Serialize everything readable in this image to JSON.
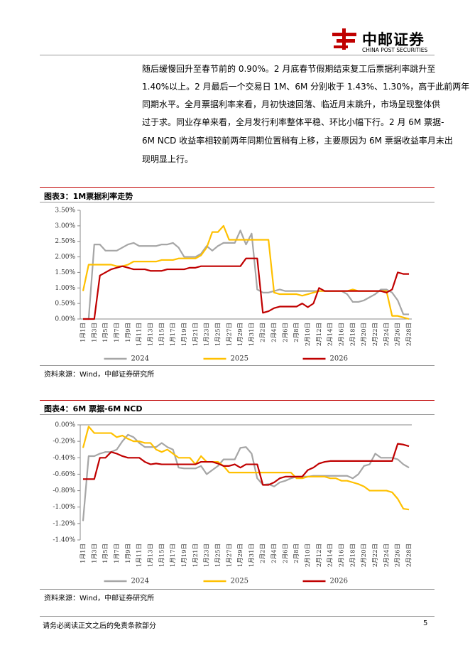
{
  "header": {
    "logo": "中邮证券",
    "logo_en": "CHINA POST SECURITIES"
  },
  "paragraph": [
    "随后缓慢回升至春节前的 0.90%。2 月底春节假期结束复工后票据利率跳升至",
    "1.40%以上。2 月最后一个交易日 1M、6M 分别收于 1.43%、1.30%，高于此前两年",
    "同期水平。全月票据利率来看，月初快速回落、临近月末跳升，市场呈现整体供",
    "过于求。同业存单来看，全月发行利率整体平稳、环比小幅下行。2 月 6M 票据-",
    "6M NCD 收益率相较前两年同期位置稍有上移，主要原因为 6M 票据收益率月末出",
    "现明显上行。"
  ],
  "chart_data": [
    {
      "type": "line",
      "title": "图表3：1M票据利率走势",
      "source": "资料来源：Wind，中邮证券研究所",
      "categories": [
        "1月1日",
        null,
        "1月3日",
        null,
        "1月5日",
        null,
        "1月7日",
        null,
        "1月9日",
        null,
        "1月11日",
        null,
        "1月13日",
        null,
        "1月15日",
        null,
        "1月17日",
        null,
        "1月19日",
        null,
        "1月21日",
        null,
        "1月23日",
        null,
        "1月25日",
        null,
        "1月27日",
        null,
        "1月29日",
        null,
        "1月31日",
        null,
        "2月2日",
        null,
        "2月4日",
        null,
        "2月6日",
        null,
        "2月8日",
        null,
        "2月10日",
        null,
        "2月12日",
        null,
        "2月14日",
        null,
        "2月16日",
        null,
        "2月18日",
        null,
        "2月20日",
        null,
        "2月22日",
        null,
        "2月24日",
        null,
        "2月26日",
        null,
        "2月28日"
      ],
      "ylim": [
        0,
        3.5
      ],
      "yticks": [
        {
          "value": 0,
          "label": "0.00%"
        },
        {
          "value": 0.5,
          "label": "0.50%"
        },
        {
          "value": 1,
          "label": "1.00%"
        },
        {
          "value": 1.5,
          "label": "1.50%"
        },
        {
          "value": 2,
          "label": "2.00%"
        },
        {
          "value": 2.5,
          "label": "2.50%"
        },
        {
          "value": 3,
          "label": "3.00%"
        },
        {
          "value": 3.5,
          "label": "3.50%"
        }
      ],
      "grid": false,
      "legend": "bottom",
      "series": [
        {
          "name": "2024",
          "color": "#a6a6a6",
          "values": [
            0,
            0,
            2.4,
            2.4,
            2.2,
            2.2,
            2.2,
            2.3,
            2.4,
            2.45,
            2.35,
            2.35,
            2.35,
            2.35,
            2.4,
            2.4,
            2.45,
            2.3,
            2.0,
            2.0,
            2.0,
            2.1,
            2.35,
            2.2,
            2.35,
            2.45,
            2.45,
            2.45,
            2.85,
            2.4,
            2.75,
            0.95,
            0.85,
            0.85,
            0.9,
            0.95,
            0.9,
            0.9,
            0.9,
            0.9,
            0.9,
            0.9,
            0.9,
            0.9,
            0.9,
            0.9,
            0.9,
            0.8,
            0.55,
            0.55,
            0.6,
            0.7,
            0.8,
            0.95,
            0.95,
            0.85,
            0.6,
            0.15,
            0.15
          ]
        },
        {
          "name": "2025",
          "color": "#ffc000",
          "values": [
            0.9,
            1.75,
            1.75,
            1.75,
            1.75,
            1.75,
            1.7,
            1.7,
            1.75,
            1.85,
            1.85,
            1.85,
            1.85,
            1.85,
            1.9,
            1.9,
            1.9,
            1.95,
            1.95,
            1.95,
            1.95,
            2.05,
            2.3,
            2.8,
            2.8,
            3.0,
            2.55,
            2.55,
            2.55,
            2.55,
            2.55,
            2.55,
            2.55,
            2.55,
            0.85,
            0.8,
            0.8,
            0.8,
            0.8,
            0.75,
            0.8,
            0.85,
            0.9,
            0.9,
            0.9,
            0.9,
            0.9,
            0.9,
            0.95,
            0.9,
            0.9,
            0.9,
            0.9,
            0.9,
            0.9,
            0.1,
            0.1,
            0.05,
            0.0
          ]
        },
        {
          "name": "2026",
          "color": "#c00000",
          "values": [
            0,
            0,
            0,
            1.4,
            1.5,
            1.6,
            1.65,
            1.7,
            1.65,
            1.6,
            1.6,
            1.6,
            1.55,
            1.55,
            1.55,
            1.6,
            1.6,
            1.6,
            1.6,
            1.65,
            1.65,
            1.7,
            1.7,
            1.7,
            1.7,
            1.7,
            1.7,
            1.7,
            1.7,
            1.95,
            1.95,
            1.95,
            0.2,
            0.25,
            0.35,
            0.4,
            0.4,
            0.4,
            0.4,
            0.5,
            0.38,
            0.5,
            1.0,
            0.9,
            0.9,
            0.9,
            0.9,
            0.9,
            0.9,
            0.9,
            0.9,
            0.9,
            0.9,
            0.9,
            0.85,
            0.95,
            1.5,
            1.45,
            1.45
          ]
        }
      ]
    },
    {
      "type": "line",
      "title": "图表4：6M 票据-6M NCD",
      "source": "资料来源：Wind，中邮证券研究所",
      "categories": [
        "1月1日",
        null,
        "1月3日",
        null,
        "1月5日",
        null,
        "1月7日",
        null,
        "1月9日",
        null,
        "1月11日",
        null,
        "1月13日",
        null,
        "1月15日",
        null,
        "1月17日",
        null,
        "1月19日",
        null,
        "1月21日",
        null,
        "1月23日",
        null,
        "1月25日",
        null,
        "1月27日",
        null,
        "1月29日",
        null,
        "1月31日",
        null,
        "2月2日",
        null,
        "2月4日",
        null,
        "2月6日",
        null,
        "2月8日",
        null,
        "2月10日",
        null,
        "2月12日",
        null,
        "2月14日",
        null,
        "2月16日",
        null,
        "2月18日",
        null,
        "2月20日",
        null,
        "2月22日",
        null,
        "2月24日",
        null,
        "2月26日",
        null,
        "2月28日"
      ],
      "ylim": [
        -1.4,
        0
      ],
      "yticks": [
        {
          "value": 0,
          "label": "0.00%"
        },
        {
          "value": -0.2,
          "label": "-0.20%"
        },
        {
          "value": -0.4,
          "label": "-0.40%"
        },
        {
          "value": -0.6,
          "label": "-0.60%"
        },
        {
          "value": -0.8,
          "label": "-0.80%"
        },
        {
          "value": -1,
          "label": "-1.00%"
        },
        {
          "value": -1.2,
          "label": "-1.20%"
        },
        {
          "value": -1.4,
          "label": "-1.40%"
        }
      ],
      "grid": false,
      "legend": "bottom",
      "series": [
        {
          "name": "2024",
          "color": "#a6a6a6",
          "values": [
            -1.17,
            -0.38,
            -0.38,
            -0.35,
            -0.33,
            -0.33,
            -0.3,
            -0.2,
            -0.12,
            -0.15,
            -0.22,
            -0.27,
            -0.27,
            -0.27,
            -0.22,
            -0.27,
            -0.3,
            -0.52,
            -0.53,
            -0.53,
            -0.53,
            -0.5,
            -0.6,
            -0.55,
            -0.5,
            -0.42,
            -0.42,
            -0.42,
            -0.28,
            -0.27,
            -0.35,
            -0.65,
            -0.73,
            -0.72,
            -0.75,
            -0.7,
            -0.68,
            -0.65,
            -0.63,
            -0.63,
            -0.63,
            -0.62,
            -0.62,
            -0.62,
            -0.62,
            -0.62,
            -0.62,
            -0.62,
            -0.65,
            -0.6,
            -0.5,
            -0.48,
            -0.35,
            -0.4,
            -0.4,
            -0.4,
            -0.42,
            -0.48,
            -0.52
          ]
        },
        {
          "name": "2025",
          "color": "#ffc000",
          "values": [
            -0.28,
            -0.02,
            -0.1,
            -0.1,
            -0.1,
            -0.1,
            -0.15,
            -0.13,
            -0.17,
            -0.2,
            -0.2,
            -0.22,
            -0.22,
            -0.3,
            -0.33,
            -0.3,
            -0.35,
            -0.4,
            -0.4,
            -0.4,
            -0.48,
            -0.38,
            -0.45,
            -0.45,
            -0.45,
            -0.5,
            -0.58,
            -0.58,
            -0.58,
            -0.58,
            -0.58,
            -0.58,
            -0.58,
            -0.58,
            -0.58,
            -0.58,
            -0.58,
            -0.58,
            -0.65,
            -0.65,
            -0.63,
            -0.63,
            -0.63,
            -0.63,
            -0.65,
            -0.65,
            -0.68,
            -0.68,
            -0.7,
            -0.72,
            -0.75,
            -0.8,
            -0.8,
            -0.8,
            -0.8,
            -0.82,
            -0.9,
            -1.02,
            -1.03
          ]
        },
        {
          "name": "2026",
          "color": "#c00000",
          "values": [
            -0.66,
            -0.66,
            -0.66,
            -0.4,
            -0.4,
            -0.33,
            -0.35,
            -0.38,
            -0.4,
            -0.4,
            -0.4,
            -0.45,
            -0.48,
            -0.47,
            -0.48,
            -0.48,
            -0.48,
            -0.48,
            -0.48,
            -0.48,
            -0.48,
            -0.45,
            -0.45,
            -0.45,
            -0.47,
            -0.5,
            -0.5,
            -0.48,
            -0.52,
            -0.48,
            -0.48,
            -0.48,
            -0.73,
            -0.73,
            -0.7,
            -0.65,
            -0.63,
            -0.63,
            -0.63,
            -0.63,
            -0.55,
            -0.52,
            -0.47,
            -0.45,
            -0.44,
            -0.44,
            -0.44,
            -0.44,
            -0.44,
            -0.44,
            -0.44,
            -0.44,
            -0.44,
            -0.44,
            -0.44,
            -0.44,
            -0.23,
            -0.24,
            -0.26
          ]
        }
      ]
    }
  ],
  "footer": {
    "disclaimer": "请务必阅读正文之后的免责条款部分",
    "page": "5"
  }
}
